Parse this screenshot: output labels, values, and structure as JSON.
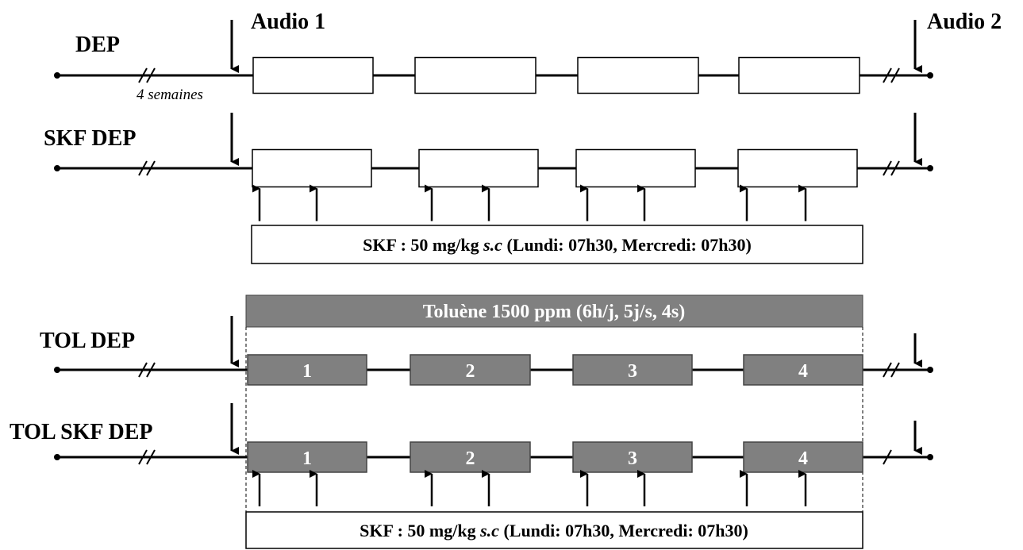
{
  "audio_1": "Audio 1",
  "audio_2": "Audio 2",
  "groups": [
    {
      "name": "DEP",
      "duration": "4 semaines"
    },
    {
      "name": "SKF DEP"
    },
    {
      "name": "TOL DEP",
      "weeks": [
        "1",
        "2",
        "3",
        "4"
      ]
    },
    {
      "name": "TOL SKF DEP",
      "weeks": [
        "1",
        "2",
        "3",
        "4"
      ]
    }
  ],
  "exposure": "Toluène 1500 ppm (6h/j, 5j/s, 4s)",
  "treatments": [
    {
      "prefix": "SKF : 50 mg/kg ",
      "route": "s.c",
      "schedule": " (Lundi: 07h30, Mercredi: 07h30)"
    },
    {
      "prefix": "SKF : 50 mg/kg ",
      "route": "s.c",
      "schedule": " (Lundi: 07h30, Mercredi: 07h30)"
    }
  ]
}
